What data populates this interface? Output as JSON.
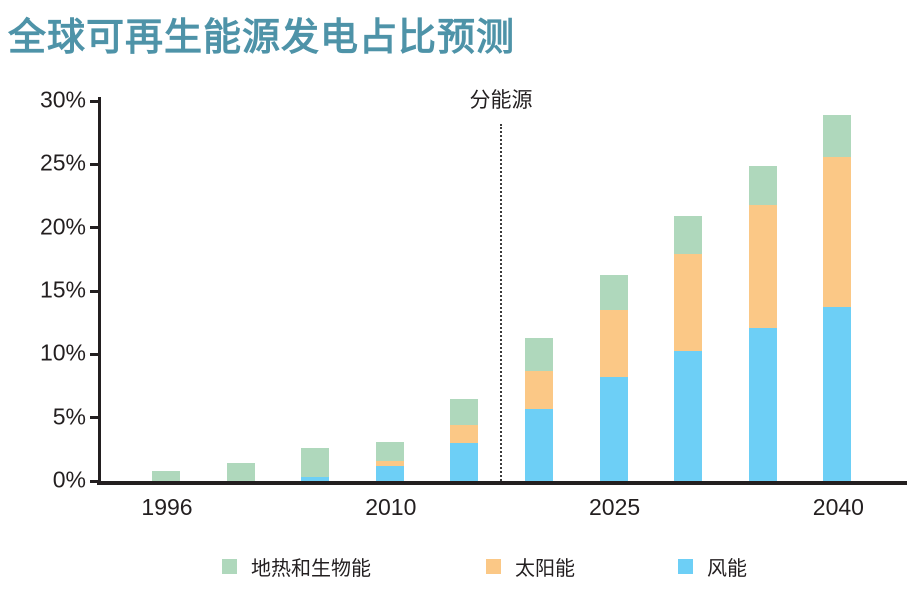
{
  "title": "全球可再生能源发电占比预测",
  "title_color": "#4E93A8",
  "text_color": "#231F20",
  "legend": [
    {
      "key": "geo-bio",
      "label": "地热和生物能",
      "color": "#AFD8BC"
    },
    {
      "key": "solar",
      "label": "太阳能",
      "color": "#FBC886"
    },
    {
      "key": "wind",
      "label": "风能",
      "color": "#6DCFF6"
    }
  ],
  "chart_data": {
    "type": "bar",
    "stacked": true,
    "title": "全球可再生能源发电占比预测",
    "categories": [
      "1996",
      "",
      "",
      "2010",
      "",
      "",
      "2025",
      "",
      "",
      "2040"
    ],
    "series": [
      {
        "key": "wind",
        "name": "风能",
        "color": "#6DCFF6",
        "values": [
          0,
          0,
          0.3,
          1.2,
          3.0,
          5.7,
          8.2,
          10.3,
          12.1,
          13.7
        ]
      },
      {
        "key": "solar",
        "name": "太阳能",
        "color": "#FBC886",
        "values": [
          0,
          0,
          0,
          0.4,
          1.4,
          3.0,
          5.3,
          7.6,
          9.7,
          11.9
        ]
      },
      {
        "key": "geo-bio",
        "name": "地热和生物能",
        "color": "#AFD8BC",
        "values": [
          0.8,
          1.4,
          2.3,
          1.5,
          2.1,
          2.6,
          2.8,
          3.0,
          3.1,
          3.3
        ]
      }
    ],
    "totals": [
      0.8,
      1.4,
      2.6,
      3.1,
      6.5,
      11.3,
      16.3,
      20.9,
      24.9,
      28.9
    ],
    "xlabel": "",
    "ylabel": "",
    "ylim": [
      0,
      30
    ],
    "y_ticks": [
      "0%",
      "5%",
      "10%",
      "15%",
      "20%",
      "25%",
      "30%"
    ],
    "grid": false,
    "legend_position": "bottom",
    "divider_after_category_index": 4,
    "divider_label": "分能源"
  }
}
